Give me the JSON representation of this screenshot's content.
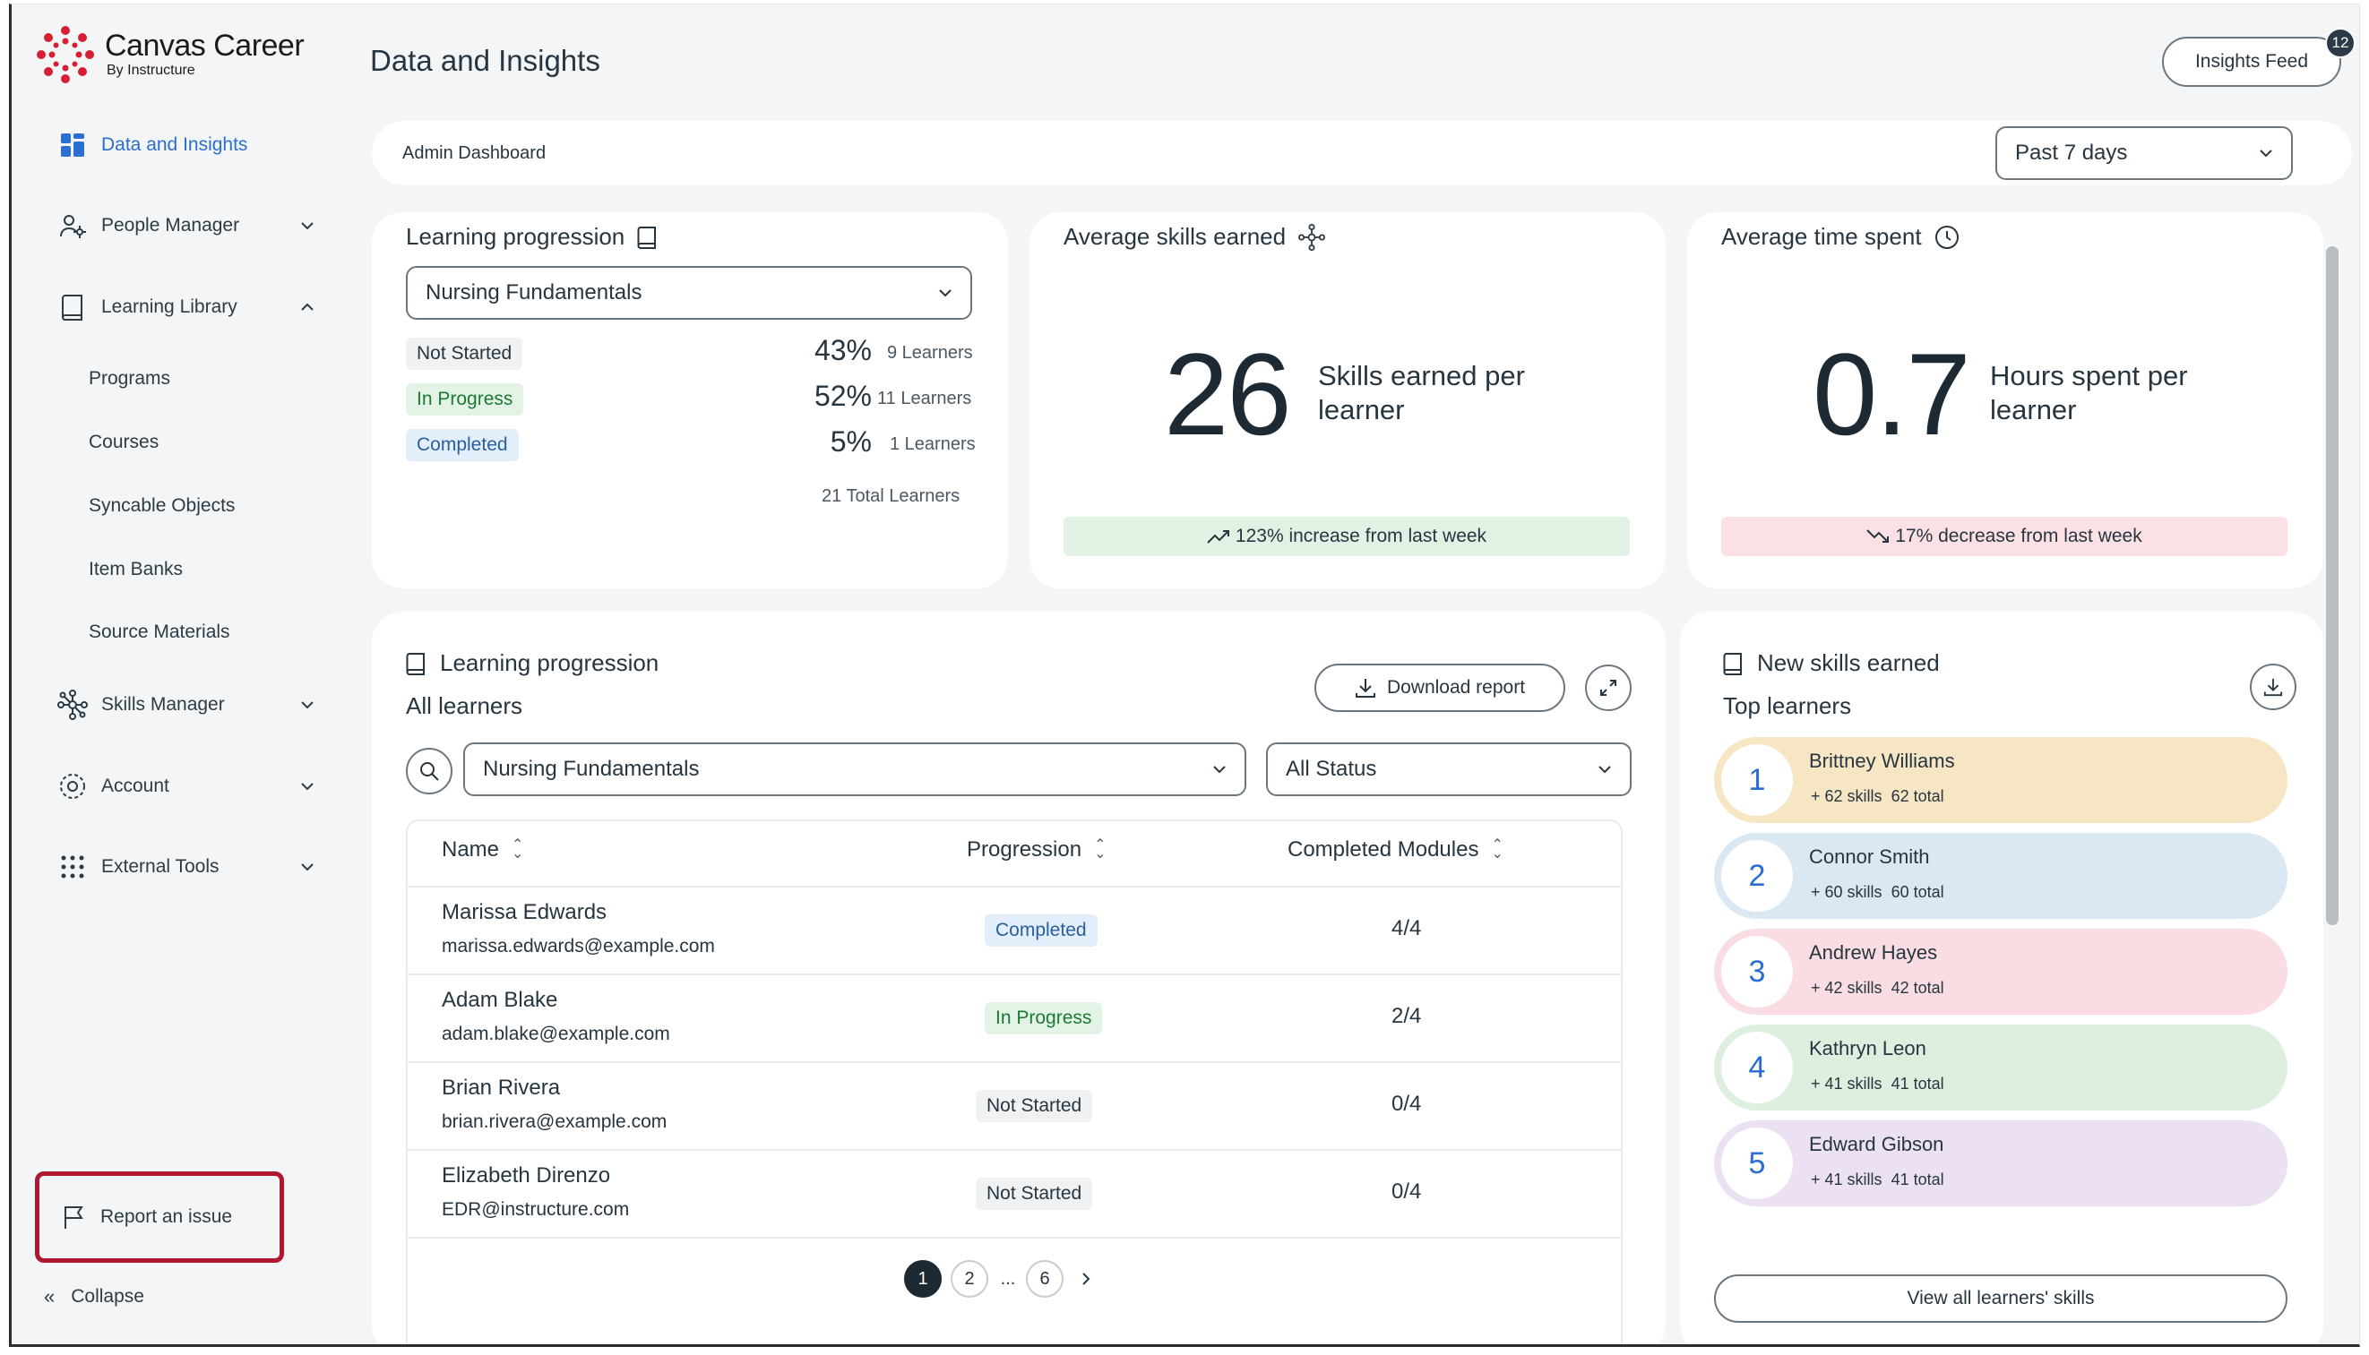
{
  "brand": {
    "name": "Canvas Career",
    "sub": "By Instructure",
    "color": "#d61f35"
  },
  "page": {
    "title": "Data and Insights",
    "insights_feed": "Insights Feed",
    "feed_count": "12",
    "admin_label": "Admin Dashboard",
    "range": "Past 7 days"
  },
  "sidebar": {
    "items": [
      {
        "label": "Data and Insights"
      },
      {
        "label": "People Manager"
      },
      {
        "label": "Learning Library"
      },
      {
        "label": "Skills Manager"
      },
      {
        "label": "Account"
      },
      {
        "label": "External Tools"
      }
    ],
    "library_sub": [
      "Programs",
      "Courses",
      "Syncable Objects",
      "Item Banks",
      "Source Materials"
    ],
    "report": "Report an issue",
    "collapse": "Collapse"
  },
  "progress_card": {
    "title": "Learning progression",
    "course": "Nursing Fundamentals",
    "rows": [
      {
        "status": "Not Started",
        "pct": "43%",
        "count": "9 Learners"
      },
      {
        "status": "In Progress",
        "pct": "52%",
        "count": "11 Learners"
      },
      {
        "status": "Completed",
        "pct": "5%",
        "count": "1 Learners"
      }
    ],
    "total": "21 Total Learners"
  },
  "skills_card": {
    "title": "Average skills earned",
    "value": "26",
    "desc": "Skills earned per learner",
    "trend": "123% increase from last week"
  },
  "time_card": {
    "title": "Average time spent",
    "value": "0.7",
    "desc": "Hours spent per learner",
    "trend": "17% decrease from last week"
  },
  "table_card": {
    "title": "Learning progression",
    "subtitle": "All learners",
    "download": "Download report",
    "course": "Nursing Fundamentals",
    "status_filter": "All Status",
    "headers": {
      "name": "Name",
      "progression": "Progression",
      "modules": "Completed Modules"
    },
    "rows": [
      {
        "name": "Marissa Edwards",
        "email": "marissa.edwards@example.com",
        "status": "Completed",
        "modules": "4/4"
      },
      {
        "name": "Adam Blake",
        "email": "adam.blake@example.com",
        "status": "In Progress",
        "modules": "2/4"
      },
      {
        "name": "Brian Rivera",
        "email": "brian.rivera@example.com",
        "status": "Not Started",
        "modules": "0/4"
      },
      {
        "name": "Elizabeth Direnzo",
        "email": "EDR@instructure.com",
        "status": "Not Started",
        "modules": "0/4"
      }
    ],
    "pages": [
      "1",
      "2",
      "...",
      "6"
    ]
  },
  "skills_list": {
    "title": "New skills earned",
    "subtitle": "Top learners",
    "learners": [
      {
        "rank": "1",
        "name": "Brittney Williams",
        "skills": "+ 62 skills",
        "total": "62 total",
        "color": "#f7e6c3"
      },
      {
        "rank": "2",
        "name": "Connor Smith",
        "skills": "+ 60 skills",
        "total": "60 total",
        "color": "#d9e8f2"
      },
      {
        "rank": "3",
        "name": "Andrew Hayes",
        "skills": "+ 42 skills",
        "total": "42 total",
        "color": "#f9dde2"
      },
      {
        "rank": "4",
        "name": "Kathryn Leon",
        "skills": "+ 41 skills",
        "total": "41 total",
        "color": "#deeedf"
      },
      {
        "rank": "5",
        "name": "Edward Gibson",
        "skills": "+ 41 skills",
        "total": "41 total",
        "color": "#ebe1f3"
      }
    ],
    "view_all": "View all learners' skills"
  }
}
